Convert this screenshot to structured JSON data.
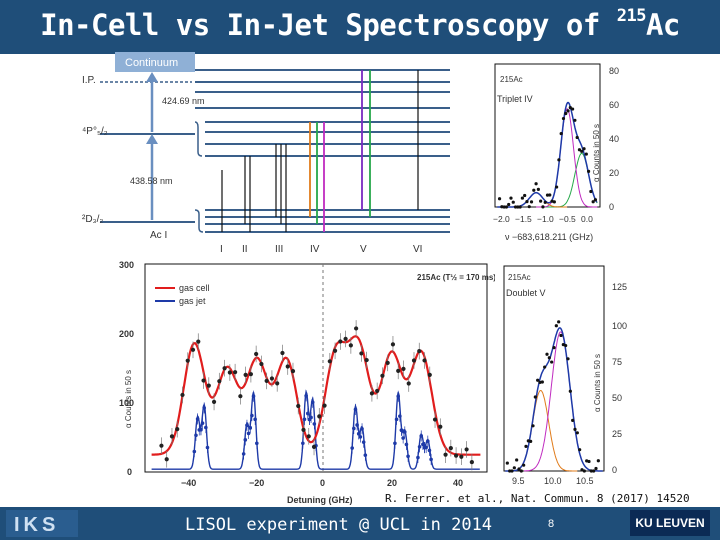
{
  "header": {
    "title_main": "In-Cell vs In-Jet Spectroscopy of ",
    "title_sup": "215",
    "title_tail": "Ac"
  },
  "level_diagram": {
    "continuum": "Continuum",
    "ip": "I.P.",
    "wl_upper": "424.69 nm",
    "p_state": "⁴P°₅/₂",
    "wl_lower": "438.58 nm",
    "d_state": "²D₃/₂",
    "species": "Ac I",
    "groups": [
      "I",
      "II",
      "III",
      "IV",
      "V",
      "VI"
    ]
  },
  "triplet_plot": {
    "isotope": "215Ac",
    "label": "Triplet IV",
    "ylabel": "α Counts in 50 s",
    "yticks": [
      "80",
      "60",
      "40",
      "20",
      "0"
    ],
    "xticks": [
      "−2.0",
      "−1.5",
      "−1.0",
      "−0.5",
      "0.0"
    ],
    "xlabel": "ν −683,618.211 (GHz)"
  },
  "main_plot": {
    "isotope_label": "215Ac (T½ = 170 ms)",
    "legend": [
      "gas cell",
      "gas jet"
    ],
    "yticks": [
      "300",
      "200",
      "100",
      "0"
    ],
    "xticks": [
      "−40",
      "−20",
      "0",
      "20",
      "40"
    ],
    "xlabel": "Detuning (GHz)",
    "ylabel": "α Counts in 50 s",
    "chart_data": {
      "type": "line",
      "title": "215Ac (T1/2 = 170 ms)",
      "xlabel": "Detuning (GHz)",
      "ylabel": "α Counts in 50 s",
      "xlim": [
        -52,
        52
      ],
      "ylim": [
        0,
        300
      ],
      "series": [
        {
          "name": "gas cell",
          "peaks_x": [
            -37,
            -27,
            -18,
            -9,
            6,
            13,
            23,
            32
          ],
          "peaks_y": [
            185,
            148,
            160,
            162,
            168,
            178,
            170,
            172
          ]
        },
        {
          "name": "gas jet",
          "peaks_x": [
            -36,
            -34,
            -21,
            -19,
            -3,
            -1,
            12,
            14,
            25,
            27,
            32,
            34
          ],
          "peaks_y": [
            75,
            92,
            65,
            110,
            110,
            100,
            90,
            60,
            110,
            55,
            50,
            42
          ]
        }
      ]
    }
  },
  "doublet_plot": {
    "isotope": "215Ac",
    "label": "Doublet V",
    "ylabel": "α Counts in 50 s",
    "yticks": [
      "125",
      "100",
      "75",
      "50",
      "25",
      "0"
    ],
    "xticks": [
      "9.5",
      "10.0",
      "10.5"
    ]
  },
  "citation": "R. Ferrer. et al., Nat. Commun. 8 (2017) 14520",
  "footer": {
    "text": "LISOL experiment @ UCL in 2014",
    "page": "8",
    "university": "KU LEUVEN",
    "logo_text": "IKS"
  },
  "colors": {
    "brand": "#1f4e79",
    "gas_cell": "#e11d1d",
    "gas_jet": "#1e3aa8"
  }
}
